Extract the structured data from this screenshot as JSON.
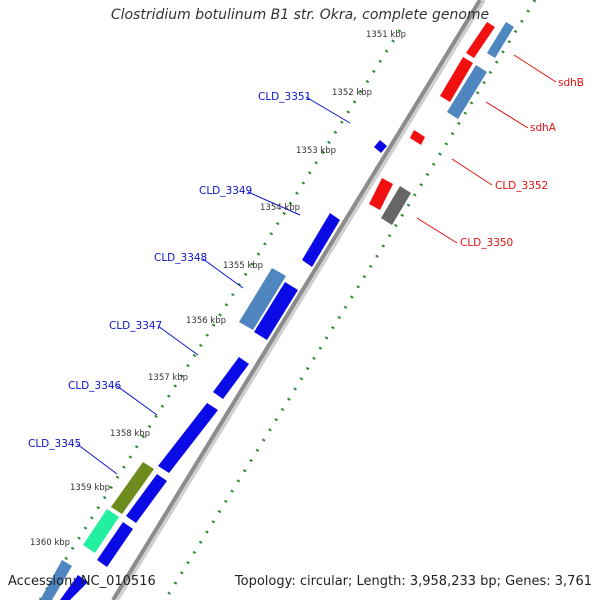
{
  "title": "Clostridium botulinum B1 str. Okra, complete genome",
  "accession": "Accession: NC_010516",
  "topology": "Topology: circular; Length: 3,958,233 bp; Genes: 3,761",
  "kbp_ticks": [
    "1351 kbp",
    "1352 kbp",
    "1353 kbp",
    "1354 kbp",
    "1355 kbp",
    "1356 kbp",
    "1357 kbp",
    "1358 kbp",
    "1359 kbp",
    "1360 kbp"
  ],
  "gene_labels_left": [
    "CLD_3351",
    "CLD_3349",
    "CLD_3348",
    "CLD_3347",
    "CLD_3346",
    "CLD_3345"
  ],
  "gene_labels_right": [
    "sdhB",
    "sdhA",
    "CLD_3352",
    "CLD_3350"
  ],
  "colors": {
    "backbone": "#8c8c8c",
    "gc_dots": "#2e8b2e",
    "label_left": "#0a14c8",
    "label_right": "#e01010",
    "gene_blue": "#0a0ae6",
    "gene_red": "#f01010",
    "gene_steelblue": "#4f86bf",
    "gene_gray": "#666666",
    "gene_olive": "#6e8c1e",
    "gene_green": "#22f0a0"
  }
}
